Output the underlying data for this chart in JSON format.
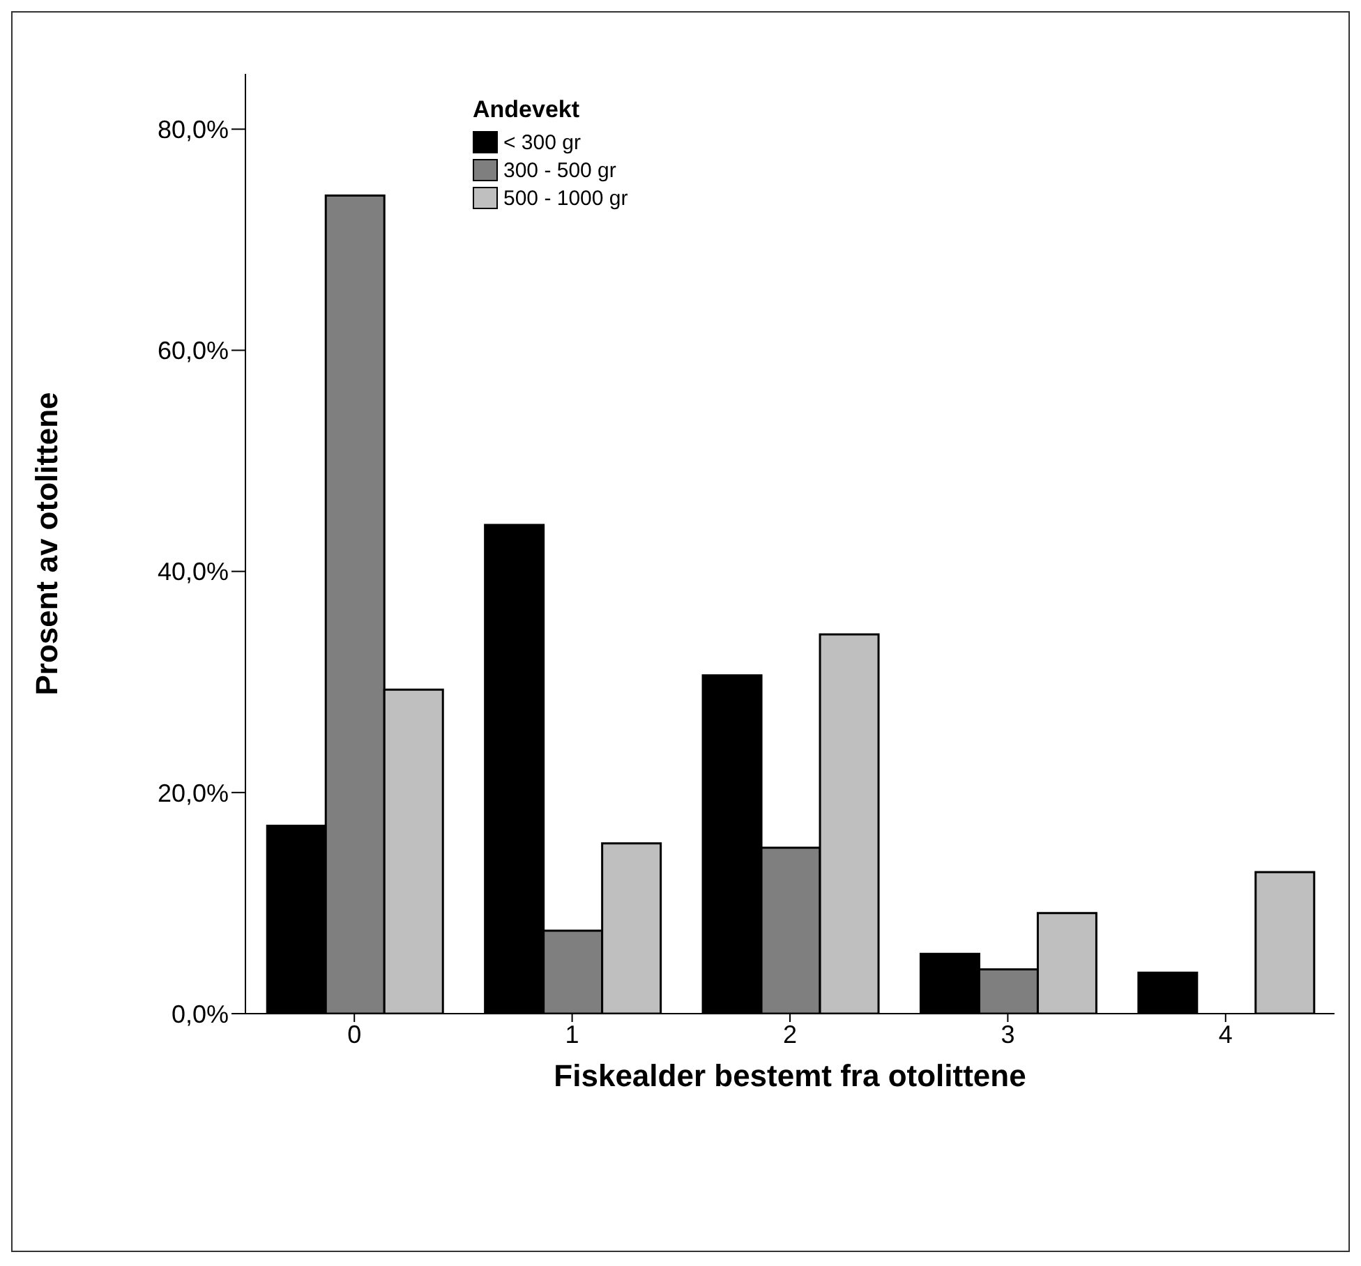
{
  "chart_data": {
    "type": "bar",
    "xlabel": "Fiskealder bestemt fra otolittene",
    "ylabel": "Prosent av otolittene",
    "legend_title": "Andevekt",
    "categories": [
      "0",
      "1",
      "2",
      "3",
      "4"
    ],
    "series": [
      {
        "name": "< 300 gr",
        "color": "#000000",
        "values": [
          17.0,
          44.2,
          30.6,
          5.4,
          3.7
        ]
      },
      {
        "name": "300 - 500 gr",
        "color": "#7f7f7f",
        "values": [
          74.0,
          7.5,
          15.0,
          4.0,
          0
        ]
      },
      {
        "name": "500 - 1000 gr",
        "color": "#bfbfbf",
        "values": [
          29.3,
          15.4,
          34.3,
          9.1,
          12.8
        ]
      }
    ],
    "ylim": [
      0,
      85
    ],
    "yticks": [
      {
        "value": 0,
        "label": "0,0%"
      },
      {
        "value": 20,
        "label": "20,0%"
      },
      {
        "value": 40,
        "label": "40,0%"
      },
      {
        "value": 60,
        "label": "60,0%"
      },
      {
        "value": 80,
        "label": "80,0%"
      }
    ],
    "grid": false,
    "legend": "top left"
  }
}
